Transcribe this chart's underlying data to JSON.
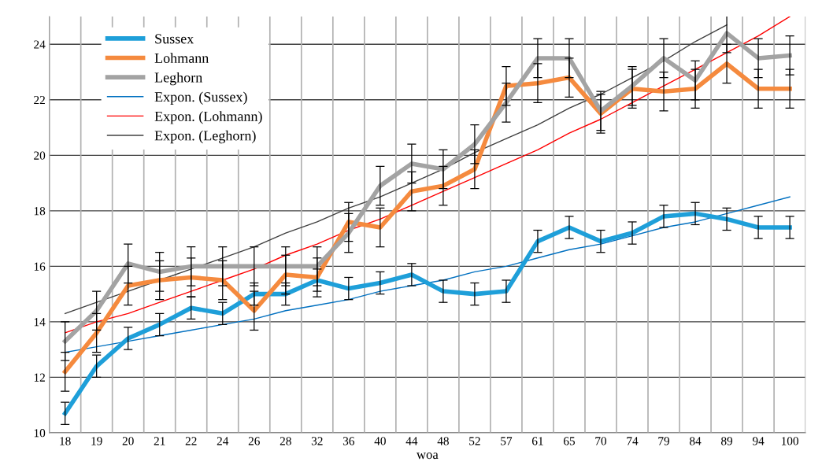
{
  "chart_data": {
    "type": "line",
    "xlabel": "woa",
    "categories": [
      "18",
      "19",
      "20",
      "21",
      "22",
      "24",
      "26",
      "28",
      "32",
      "36",
      "40",
      "44",
      "48",
      "52",
      "57",
      "61",
      "65",
      "70",
      "74",
      "79",
      "84",
      "89",
      "94",
      "100"
    ],
    "ylim": [
      10,
      25
    ],
    "yticks": [
      10,
      12,
      14,
      16,
      18,
      20,
      22,
      24
    ],
    "grid": true,
    "legend": "top left",
    "line_style": "solid",
    "marker": "none",
    "series": [
      {
        "name": "Sussex",
        "color": "#1e9fd9",
        "values": [
          10.7,
          12.4,
          13.4,
          13.9,
          14.5,
          14.3,
          15.0,
          15.0,
          15.5,
          15.2,
          15.4,
          15.7,
          15.1,
          15.0,
          15.1,
          16.9,
          17.4,
          16.9,
          17.2,
          17.8,
          17.9,
          17.7,
          17.4,
          17.4
        ],
        "errors": [
          0.4,
          0.4,
          0.4,
          0.4,
          0.4,
          0.4,
          0.4,
          0.4,
          0.4,
          0.4,
          0.4,
          0.4,
          0.4,
          0.4,
          0.4,
          0.4,
          0.4,
          0.4,
          0.4,
          0.4,
          0.4,
          0.4,
          0.4,
          0.4
        ]
      },
      {
        "name": "Lohmann",
        "color": "#f58a3e",
        "values": [
          12.2,
          13.6,
          15.3,
          15.5,
          15.6,
          15.5,
          14.4,
          15.7,
          15.6,
          17.6,
          17.4,
          18.7,
          18.9,
          19.5,
          22.5,
          22.6,
          22.8,
          21.5,
          22.4,
          22.3,
          22.4,
          23.3,
          22.4,
          22.4
        ],
        "errors": [
          0.7,
          0.7,
          0.7,
          0.7,
          0.7,
          0.7,
          0.7,
          0.7,
          0.7,
          0.7,
          0.7,
          0.7,
          0.7,
          0.7,
          0.7,
          0.7,
          0.7,
          0.7,
          0.7,
          0.7,
          0.7,
          0.7,
          0.7,
          0.7
        ]
      },
      {
        "name": "Leghorn",
        "color": "#a3a3a3",
        "values": [
          13.3,
          14.4,
          16.1,
          15.8,
          16.0,
          16.0,
          16.0,
          16.0,
          16.0,
          17.2,
          18.9,
          19.7,
          19.5,
          20.4,
          21.9,
          23.5,
          23.5,
          21.6,
          22.5,
          23.5,
          22.7,
          24.4,
          23.5,
          23.6
        ],
        "errors": [
          0.7,
          0.7,
          0.7,
          0.7,
          0.7,
          0.7,
          0.7,
          0.7,
          0.7,
          0.7,
          0.7,
          0.7,
          0.7,
          0.7,
          0.7,
          0.7,
          0.7,
          0.7,
          0.7,
          0.7,
          0.7,
          0.7,
          0.7,
          0.7
        ]
      },
      {
        "name": "Expon. (Sussex)",
        "color": "#0070c0",
        "values": [
          12.9,
          13.1,
          13.3,
          13.5,
          13.7,
          13.9,
          14.1,
          14.4,
          14.6,
          14.8,
          15.1,
          15.3,
          15.5,
          15.8,
          16.0,
          16.3,
          16.6,
          16.8,
          17.1,
          17.4,
          17.6,
          17.9,
          18.2,
          18.5
        ]
      },
      {
        "name": "Expon. (Lohmann)",
        "color": "#ff0000",
        "values": [
          13.6,
          14.0,
          14.3,
          14.7,
          15.1,
          15.5,
          15.9,
          16.4,
          16.8,
          17.3,
          17.7,
          18.2,
          18.7,
          19.2,
          19.7,
          20.2,
          20.8,
          21.3,
          21.9,
          22.5,
          23.1,
          23.7,
          24.3,
          25.0
        ]
      },
      {
        "name": "Expon. (Leghorn)",
        "color": "#404040",
        "values": [
          14.3,
          14.7,
          15.1,
          15.5,
          15.9,
          16.3,
          16.7,
          17.2,
          17.6,
          18.1,
          18.5,
          19.0,
          19.5,
          20.1,
          20.6,
          21.1,
          21.7,
          22.2,
          22.8,
          23.4,
          24.1,
          24.7,
          null,
          null
        ]
      }
    ]
  }
}
